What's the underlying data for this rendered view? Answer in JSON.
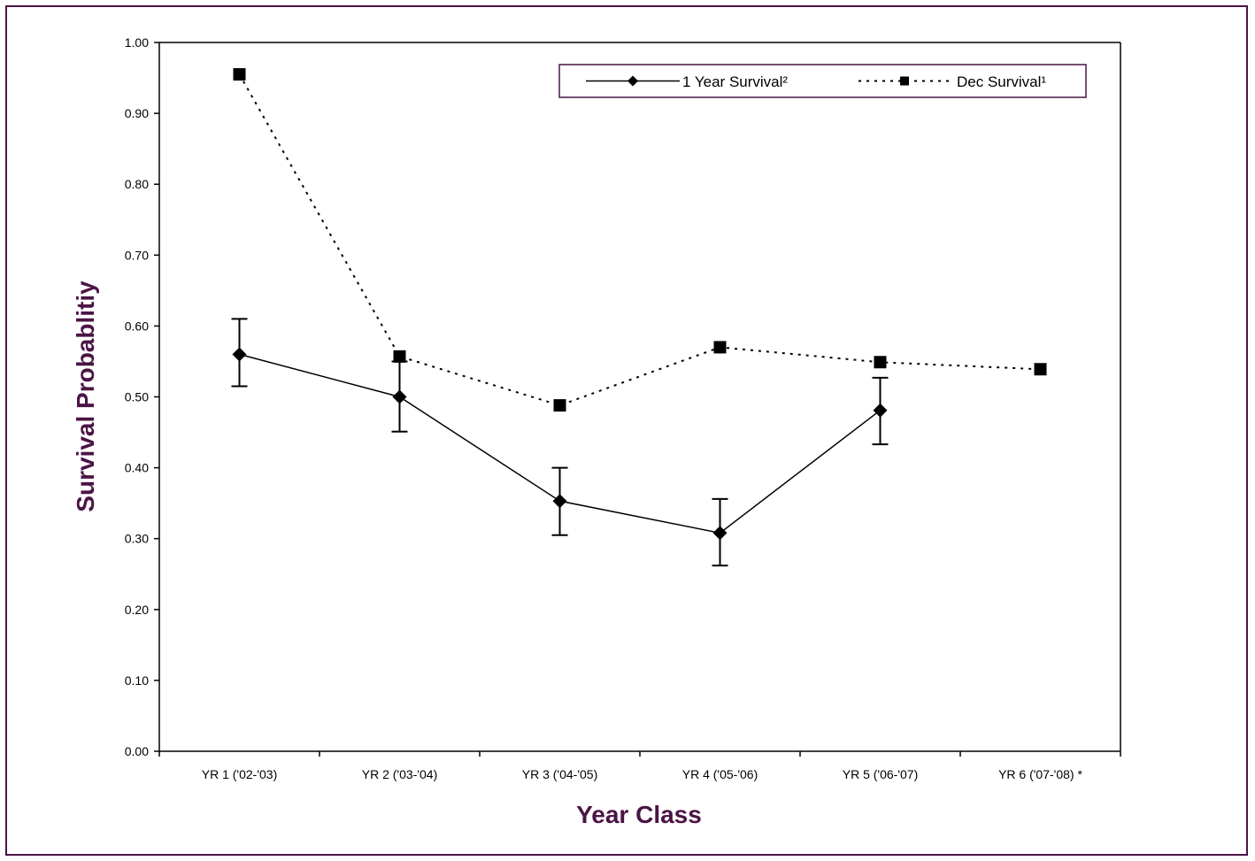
{
  "chart_data": {
    "type": "line",
    "title": "",
    "xlabel": "Year Class",
    "ylabel": "Survival Probablitiy",
    "ylim": [
      0,
      1
    ],
    "yticks": [
      "0.00",
      "0.10",
      "0.20",
      "0.30",
      "0.40",
      "0.50",
      "0.60",
      "0.70",
      "0.80",
      "0.90",
      "1.00"
    ],
    "categories": [
      "YR 1 ('02-'03)",
      "YR 2 ('03-'04)",
      "YR 3 ('04-'05)",
      "YR 4 ('05-'06)",
      "YR 5 ('06-'07)",
      "YR 6 ('07-'08) *"
    ],
    "grid": false,
    "legend_position": "top-right",
    "series": [
      {
        "name": "1 Year Survival²",
        "values": [
          0.56,
          0.5,
          0.353,
          0.308,
          0.481,
          null
        ],
        "error_low": [
          0.515,
          0.451,
          0.305,
          0.262,
          0.433,
          null
        ],
        "error_high": [
          0.61,
          0.55,
          0.4,
          0.356,
          0.527,
          null
        ],
        "line_style": "solid",
        "marker": "diamond",
        "color": "#000000"
      },
      {
        "name": "Dec Survival¹",
        "values": [
          0.955,
          0.557,
          0.488,
          0.57,
          0.549,
          0.539
        ],
        "line_style": "dotted",
        "marker": "square",
        "color": "#000000"
      }
    ]
  },
  "colors": {
    "frame": "#4B1444",
    "title": "#4B1444"
  }
}
